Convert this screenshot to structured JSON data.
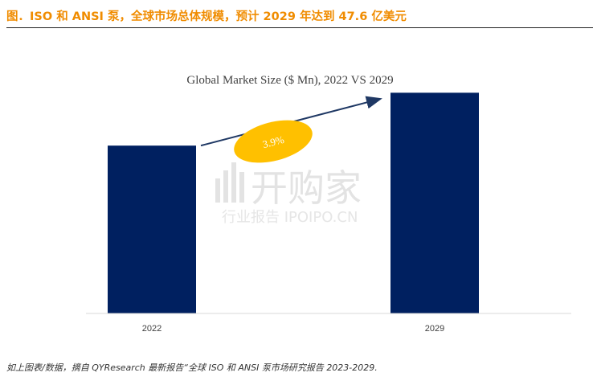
{
  "figure_title": "图．ISO 和 ANSI 泵，全球市场总体规模，预计 2029 年达到 47.6 亿美元",
  "source_note": "如上图表/数据，摘自 QYResearch 最新报告“全球 ISO 和 ANSI 泵市场研究报告 2023-2029.",
  "watermark": {
    "main": "开购家",
    "sub": "行业报告 IPOIPO.CN"
  },
  "colors": {
    "bar": "#002060",
    "growth_ellipse": "#ffc000",
    "arrow": "#1f3864",
    "title_accent": "#f08c00"
  },
  "chart_data": {
    "type": "bar",
    "title": "Global Market Size ($ Mn), 2022 VS 2029",
    "categories": [
      "2022",
      "2029"
    ],
    "values": [
      3620,
      4760
    ],
    "xlabel": "",
    "ylabel": "",
    "ylim": [
      0,
      5200
    ],
    "grid": false,
    "annotation": {
      "text": "3.9%",
      "from": "2022",
      "to": "2029"
    }
  }
}
